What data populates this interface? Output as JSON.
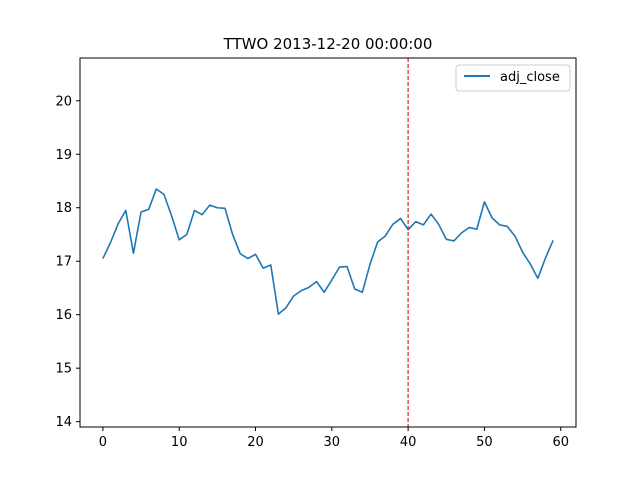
{
  "chart_data": {
    "type": "line",
    "title": "TTWO 2013-12-20 00:00:00",
    "xlabel": "",
    "ylabel": "",
    "xlim": [
      -3,
      62
    ],
    "ylim": [
      13.9,
      20.8
    ],
    "xticks": [
      0,
      10,
      20,
      30,
      40,
      50,
      60
    ],
    "yticks": [
      14,
      15,
      16,
      17,
      18,
      19,
      20
    ],
    "grid": false,
    "legend_position": "top-right",
    "vline": {
      "x": 40,
      "color": "#d62728",
      "style": "dashed"
    },
    "series": [
      {
        "name": "adj_close",
        "color": "#1f77b4",
        "x": [
          0,
          1,
          2,
          3,
          4,
          5,
          6,
          7,
          8,
          9,
          10,
          11,
          12,
          13,
          14,
          15,
          16,
          17,
          18,
          19,
          20,
          21,
          22,
          23,
          24,
          25,
          26,
          27,
          28,
          29,
          30,
          31,
          32,
          33,
          34,
          35,
          36,
          37,
          38,
          39,
          40,
          41,
          42,
          43,
          44,
          45,
          46,
          47,
          48,
          49,
          50,
          51,
          52,
          53,
          54,
          55,
          56,
          57,
          58,
          59
        ],
        "values": [
          17.05,
          17.35,
          17.7,
          17.95,
          17.15,
          17.92,
          17.97,
          18.35,
          18.25,
          17.85,
          17.4,
          17.5,
          17.95,
          17.87,
          18.05,
          18.0,
          17.99,
          17.5,
          17.14,
          17.05,
          17.13,
          16.87,
          16.93,
          16.01,
          16.13,
          16.35,
          16.45,
          16.51,
          16.62,
          16.42,
          16.65,
          16.89,
          16.9,
          16.48,
          16.42,
          16.94,
          17.36,
          17.47,
          17.69,
          17.8,
          17.59,
          17.74,
          17.68,
          17.88,
          17.69,
          17.41,
          17.38,
          17.53,
          17.63,
          17.6,
          18.11,
          17.81,
          17.68,
          17.65,
          17.47,
          17.17,
          16.95,
          16.68,
          17.06,
          17.39
        ]
      }
    ]
  }
}
